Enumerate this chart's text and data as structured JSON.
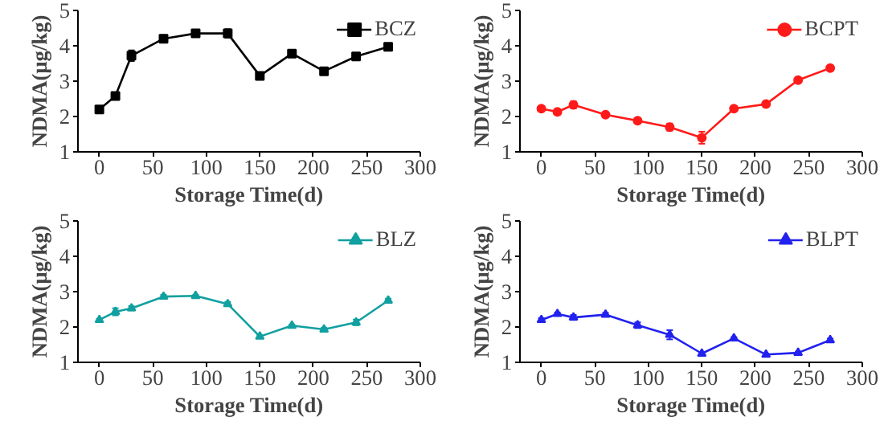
{
  "chart_data": [
    {
      "type": "line",
      "xlabel": "Storage Time(d)",
      "ylabel": "NDMA(μg/kg)",
      "x": [
        0,
        15,
        30,
        60,
        90,
        120,
        150,
        180,
        210,
        240,
        270
      ],
      "xlim": [
        -20,
        300
      ],
      "xticks": [
        0,
        50,
        100,
        150,
        200,
        250,
        300
      ],
      "ylim": [
        1,
        5
      ],
      "yticks": [
        1,
        2,
        3,
        4,
        5
      ],
      "grid": false,
      "legend": "top right",
      "marker": "square",
      "line_style": "solid",
      "series": [
        {
          "name": "BCZ",
          "color": "#000000",
          "values": [
            2.2,
            2.58,
            3.72,
            4.2,
            4.35,
            4.35,
            3.15,
            3.78,
            3.28,
            3.7,
            3.97
          ],
          "errors": [
            0.05,
            0.08,
            0.15,
            0.1,
            0.03,
            0.12,
            0.05,
            0.08,
            0.03,
            0.04,
            0.08
          ]
        }
      ]
    },
    {
      "type": "line",
      "xlabel": "Storage Time(d)",
      "ylabel": "NDMA(μg/kg)",
      "x": [
        0,
        15,
        30,
        60,
        90,
        120,
        150,
        180,
        210,
        240,
        270
      ],
      "xlim": [
        -20,
        300
      ],
      "xticks": [
        0,
        50,
        100,
        150,
        200,
        250,
        300
      ],
      "ylim": [
        1,
        5
      ],
      "yticks": [
        1,
        2,
        3,
        4,
        5
      ],
      "grid": false,
      "legend": "top right",
      "marker": "circle",
      "line_style": "solid",
      "series": [
        {
          "name": "BCPT",
          "color": "#ff1a1a",
          "values": [
            2.22,
            2.13,
            2.33,
            2.05,
            1.88,
            1.7,
            1.4,
            2.22,
            2.35,
            3.03,
            3.37
          ],
          "errors": [
            0.05,
            0.07,
            0.1,
            0.03,
            0.03,
            0.1,
            0.17,
            0.03,
            0.03,
            0.03,
            0.04
          ]
        }
      ]
    },
    {
      "type": "line",
      "xlabel": "Storage Time(d)",
      "ylabel": "NDMA(μg/kg)",
      "x": [
        0,
        15,
        30,
        60,
        90,
        120,
        150,
        180,
        210,
        240,
        270
      ],
      "xlim": [
        -20,
        300
      ],
      "xticks": [
        0,
        50,
        100,
        150,
        200,
        250,
        300
      ],
      "ylim": [
        1,
        5
      ],
      "yticks": [
        1,
        2,
        3,
        4,
        5
      ],
      "grid": false,
      "legend": "top right",
      "marker": "triangle",
      "line_style": "solid",
      "series": [
        {
          "name": "BLZ",
          "color": "#11a0a0",
          "values": [
            2.2,
            2.43,
            2.53,
            2.86,
            2.88,
            2.65,
            1.73,
            2.04,
            1.93,
            2.13,
            2.75
          ],
          "errors": [
            0.03,
            0.1,
            0.06,
            0.05,
            0.03,
            0.06,
            0.04,
            0.03,
            0.05,
            0.08,
            0.05
          ]
        }
      ]
    },
    {
      "type": "line",
      "xlabel": "Storage Time(d)",
      "ylabel": "NDMA(μg/kg)",
      "x": [
        0,
        15,
        30,
        60,
        90,
        120,
        150,
        180,
        210,
        240,
        270
      ],
      "xlim": [
        -20,
        300
      ],
      "xticks": [
        0,
        50,
        100,
        150,
        200,
        250,
        300
      ],
      "ylim": [
        1,
        5
      ],
      "yticks": [
        1,
        2,
        3,
        4,
        5
      ],
      "grid": false,
      "legend": "top right",
      "marker": "triangle",
      "line_style": "solid",
      "series": [
        {
          "name": "BLPT",
          "color": "#2222ee",
          "values": [
            2.2,
            2.37,
            2.27,
            2.35,
            2.05,
            1.78,
            1.25,
            1.68,
            1.22,
            1.27,
            1.63
          ],
          "errors": [
            0.05,
            0.04,
            0.07,
            0.05,
            0.08,
            0.13,
            0.04,
            0.03,
            0.03,
            0.03,
            0.04
          ]
        }
      ]
    }
  ]
}
